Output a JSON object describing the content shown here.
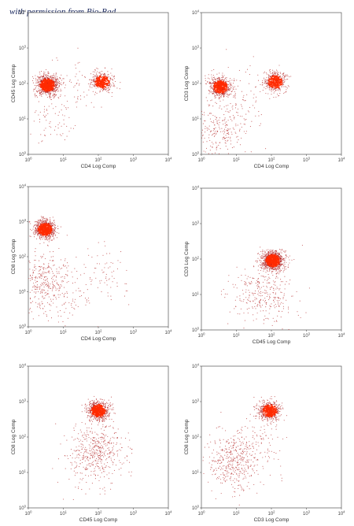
{
  "credit": "with permission from Bio-Rad",
  "colors": {
    "dot": "#b22222",
    "dense": "#ff2a00",
    "frame": "#555555"
  },
  "chart_data": [
    {
      "type": "scatter",
      "title": "",
      "xlabel": "CD4 Log Comp",
      "ylabel": "CD45 Log Comp",
      "xscale": "log",
      "yscale": "log",
      "xlim": [
        1,
        10000
      ],
      "ylim": [
        1,
        10000
      ],
      "xticks": [
        1,
        10,
        100,
        1000,
        10000
      ],
      "yticks": [
        1,
        10,
        100,
        1000,
        10000
      ],
      "tick_labels": [
        "10^0",
        "10^1",
        "10^2",
        "10^3",
        "10^4"
      ],
      "populations": [
        {
          "x": 3.5,
          "y": 90,
          "count": 900,
          "note": "dense"
        },
        {
          "x": 130,
          "y": 110,
          "count": 400,
          "note": "dense"
        },
        {
          "x": 20,
          "y": 90,
          "count": 60,
          "note": "sparse"
        },
        {
          "x": 5,
          "y": 10,
          "count": 80,
          "note": "sparse"
        }
      ]
    },
    {
      "type": "scatter",
      "title": "",
      "xlabel": "CD4 Log Comp",
      "ylabel": "CD3 Log Comp",
      "xscale": "log",
      "yscale": "log",
      "xlim": [
        1,
        10000
      ],
      "ylim": [
        1,
        10000
      ],
      "xticks": [
        1,
        10,
        100,
        1000,
        10000
      ],
      "yticks": [
        1,
        10,
        100,
        1000,
        10000
      ],
      "tick_labels": [
        "10^0",
        "10^1",
        "10^2",
        "10^3",
        "10^4"
      ],
      "populations": [
        {
          "x": 3.5,
          "y": 80,
          "count": 600,
          "note": "dense"
        },
        {
          "x": 130,
          "y": 110,
          "count": 450,
          "note": "dense"
        },
        {
          "x": 3.5,
          "y": 5,
          "count": 250,
          "note": "sparse"
        },
        {
          "x": 20,
          "y": 40,
          "count": 80,
          "note": "sparse"
        }
      ]
    },
    {
      "type": "scatter",
      "title": "",
      "xlabel": "CD4 Log Comp",
      "ylabel": "CD8 Log Comp",
      "xscale": "log",
      "yscale": "log",
      "xlim": [
        1,
        10000
      ],
      "ylim": [
        1,
        10000
      ],
      "xticks": [
        1,
        10,
        100,
        1000,
        10000
      ],
      "yticks": [
        1,
        10,
        100,
        1000,
        10000
      ],
      "tick_labels": [
        "10^0",
        "10^1",
        "10^2",
        "10^3",
        "10^4"
      ],
      "populations": [
        {
          "x": 3,
          "y": 600,
          "count": 700,
          "note": "dense"
        },
        {
          "x": 3,
          "y": 20,
          "count": 350,
          "note": "sparse"
        },
        {
          "x": 120,
          "y": 30,
          "count": 80,
          "note": "sparse"
        },
        {
          "x": 15,
          "y": 5,
          "count": 50,
          "note": "sparse"
        }
      ]
    },
    {
      "type": "scatter",
      "title": "",
      "xlabel": "CD45 Log Comp",
      "ylabel": "CD3 Log Comp",
      "xscale": "log",
      "yscale": "log",
      "xlim": [
        1,
        10000
      ],
      "ylim": [
        1,
        10000
      ],
      "xticks": [
        1,
        10,
        100,
        1000,
        10000
      ],
      "yticks": [
        1,
        10,
        100,
        1000,
        10000
      ],
      "tick_labels": [
        "10^0",
        "10^1",
        "10^2",
        "10^3",
        "10^4"
      ],
      "populations": [
        {
          "x": 110,
          "y": 90,
          "count": 900,
          "note": "dense"
        },
        {
          "x": 80,
          "y": 10,
          "count": 250,
          "note": "sparse"
        },
        {
          "x": 20,
          "y": 10,
          "count": 60,
          "note": "sparse"
        }
      ]
    },
    {
      "type": "scatter",
      "title": "",
      "xlabel": "CD45 Log Comp",
      "ylabel": "CD8 Log Comp",
      "xscale": "log",
      "yscale": "log",
      "xlim": [
        1,
        10000
      ],
      "ylim": [
        1,
        10000
      ],
      "xticks": [
        1,
        10,
        100,
        1000,
        10000
      ],
      "yticks": [
        1,
        10,
        100,
        1000,
        10000
      ],
      "tick_labels": [
        "10^0",
        "10^1",
        "10^2",
        "10^3",
        "10^4"
      ],
      "populations": [
        {
          "x": 100,
          "y": 550,
          "count": 650,
          "note": "dense"
        },
        {
          "x": 90,
          "y": 40,
          "count": 450,
          "note": "sparse"
        },
        {
          "x": 30,
          "y": 10,
          "count": 30,
          "note": "sparse"
        }
      ]
    },
    {
      "type": "scatter",
      "title": "",
      "xlabel": "CD3 Log Comp",
      "ylabel": "CD8 Log Comp",
      "xscale": "log",
      "yscale": "log",
      "xlim": [
        1,
        10000
      ],
      "ylim": [
        1,
        10000
      ],
      "xticks": [
        1,
        10,
        100,
        1000,
        10000
      ],
      "yticks": [
        1,
        10,
        100,
        1000,
        10000
      ],
      "tick_labels": [
        "10^0",
        "10^1",
        "10^2",
        "10^3",
        "10^4"
      ],
      "populations": [
        {
          "x": 90,
          "y": 550,
          "count": 550,
          "note": "dense"
        },
        {
          "x": 8,
          "y": 20,
          "count": 400,
          "note": "sparse"
        },
        {
          "x": 40,
          "y": 60,
          "count": 100,
          "note": "sparse"
        }
      ]
    }
  ]
}
